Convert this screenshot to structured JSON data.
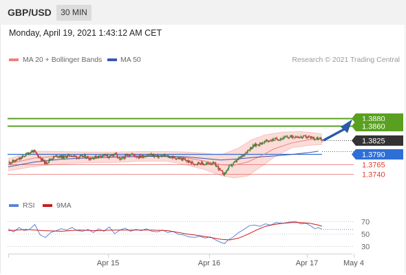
{
  "header": {
    "symbol": "GBP/USD",
    "timeframe": "30 MIN",
    "datetime": "Monday, April 19, 2021 1:43:12 AM CET"
  },
  "legend": {
    "ma20": "MA 20 + Bollinger Bands",
    "ma50": "MA 50",
    "credit": "Research © 2021 Trading Central",
    "rsi": "RSI",
    "rsi_ma": "9MA"
  },
  "colors": {
    "resistance": "#5aa020",
    "support": "#e87070",
    "pivot": "#2e6fd6",
    "current": "#333333",
    "bands": "#f9d0cc",
    "ma20": "#f08080",
    "ma50": "#3a58b0",
    "up_candle": "#3c8a3c",
    "down_candle": "#c83a3a",
    "rsi": "#5a84d6",
    "rsi_ma": "#d01818",
    "arrow": "#2a5aa8"
  },
  "chart_data": [
    {
      "type": "candlestick",
      "title": "GBP/USD",
      "timeframe": "30 MIN",
      "x_labels": [
        "Apr 15",
        "Apr 16",
        "Apr 17",
        "May 4"
      ],
      "ylim": [
        1.3705,
        1.3895
      ],
      "current_price": 1.3825,
      "levels": [
        {
          "label": "1.3880",
          "value": 1.388,
          "kind": "resistance"
        },
        {
          "label": "1.3860",
          "value": 1.386,
          "kind": "resistance"
        },
        {
          "label": "1.3825",
          "value": 1.3825,
          "kind": "current"
        },
        {
          "label": "1.3790",
          "value": 1.379,
          "kind": "pivot"
        },
        {
          "label": "1.3765",
          "value": 1.3765,
          "kind": "support"
        },
        {
          "label": "1.3740",
          "value": 1.374,
          "kind": "support"
        }
      ],
      "close_path": [
        [
          0,
          1.3768
        ],
        [
          8,
          1.3773
        ],
        [
          14,
          1.3779
        ],
        [
          22,
          1.3792
        ],
        [
          28,
          1.3798
        ],
        [
          35,
          1.3782
        ],
        [
          42,
          1.3767
        ],
        [
          48,
          1.3778
        ],
        [
          55,
          1.3786
        ],
        [
          62,
          1.3782
        ],
        [
          70,
          1.3787
        ],
        [
          78,
          1.3782
        ],
        [
          86,
          1.3784
        ],
        [
          92,
          1.3779
        ],
        [
          100,
          1.3783
        ],
        [
          108,
          1.3788
        ],
        [
          114,
          1.3782
        ],
        [
          120,
          1.3792
        ],
        [
          126,
          1.3774
        ],
        [
          132,
          1.3784
        ],
        [
          138,
          1.3791
        ],
        [
          146,
          1.3783
        ],
        [
          152,
          1.3785
        ],
        [
          160,
          1.3788
        ],
        [
          168,
          1.3784
        ],
        [
          176,
          1.3785
        ],
        [
          184,
          1.3782
        ],
        [
          192,
          1.3779
        ],
        [
          198,
          1.3776
        ],
        [
          204,
          1.377
        ],
        [
          210,
          1.3766
        ],
        [
          216,
          1.3768
        ],
        [
          222,
          1.3764
        ],
        [
          228,
          1.3768
        ],
        [
          232,
          1.3765
        ],
        [
          236,
          1.3758
        ],
        [
          240,
          1.3745
        ],
        [
          244,
          1.374
        ],
        [
          248,
          1.3755
        ],
        [
          254,
          1.3766
        ],
        [
          260,
          1.3778
        ],
        [
          266,
          1.379
        ],
        [
          272,
          1.3803
        ],
        [
          278,
          1.3812
        ],
        [
          284,
          1.3816
        ],
        [
          290,
          1.3821
        ],
        [
          296,
          1.3825
        ],
        [
          302,
          1.3827
        ],
        [
          310,
          1.383
        ],
        [
          318,
          1.3833
        ],
        [
          324,
          1.3835
        ],
        [
          330,
          1.3832
        ],
        [
          336,
          1.3833
        ],
        [
          342,
          1.3832
        ],
        [
          346,
          1.3829
        ],
        [
          350,
          1.3828
        ],
        [
          354,
          1.3826
        ]
      ],
      "ma20": [
        [
          0,
          1.3765
        ],
        [
          30,
          1.378
        ],
        [
          60,
          1.3785
        ],
        [
          90,
          1.3784
        ],
        [
          120,
          1.3785
        ],
        [
          150,
          1.3786
        ],
        [
          180,
          1.3785
        ],
        [
          200,
          1.378
        ],
        [
          220,
          1.3773
        ],
        [
          240,
          1.3763
        ],
        [
          255,
          1.3762
        ],
        [
          270,
          1.377
        ],
        [
          285,
          1.3785
        ],
        [
          300,
          1.3803
        ],
        [
          320,
          1.3818
        ],
        [
          340,
          1.3826
        ],
        [
          354,
          1.3828
        ]
      ],
      "ma50": [
        [
          0,
          1.3758
        ],
        [
          30,
          1.377
        ],
        [
          60,
          1.3777
        ],
        [
          90,
          1.378
        ],
        [
          120,
          1.3782
        ],
        [
          150,
          1.3784
        ],
        [
          180,
          1.3784
        ],
        [
          200,
          1.3783
        ],
        [
          220,
          1.3779
        ],
        [
          240,
          1.3775
        ],
        [
          260,
          1.3778
        ],
        [
          280,
          1.3782
        ],
        [
          300,
          1.3785
        ],
        [
          320,
          1.3789
        ],
        [
          340,
          1.3794
        ],
        [
          350,
          1.3797
        ]
      ],
      "bollinger_upper": [
        [
          0,
          1.3778
        ],
        [
          30,
          1.3797
        ],
        [
          60,
          1.3796
        ],
        [
          90,
          1.3795
        ],
        [
          120,
          1.3795
        ],
        [
          150,
          1.3796
        ],
        [
          180,
          1.3796
        ],
        [
          200,
          1.3795
        ],
        [
          220,
          1.3792
        ],
        [
          240,
          1.3788
        ],
        [
          260,
          1.3805
        ],
        [
          275,
          1.3826
        ],
        [
          290,
          1.3838
        ],
        [
          310,
          1.3845
        ],
        [
          330,
          1.3846
        ],
        [
          345,
          1.3843
        ],
        [
          354,
          1.384
        ]
      ],
      "bollinger_lower": [
        [
          0,
          1.3748
        ],
        [
          30,
          1.3759
        ],
        [
          60,
          1.3765
        ],
        [
          90,
          1.3768
        ],
        [
          120,
          1.3769
        ],
        [
          150,
          1.3772
        ],
        [
          180,
          1.3772
        ],
        [
          200,
          1.3763
        ],
        [
          220,
          1.3752
        ],
        [
          240,
          1.3736
        ],
        [
          255,
          1.373
        ],
        [
          270,
          1.3735
        ],
        [
          285,
          1.3758
        ],
        [
          300,
          1.3782
        ],
        [
          320,
          1.3806
        ],
        [
          340,
          1.3812
        ],
        [
          354,
          1.3814
        ]
      ],
      "forecast_arrow": {
        "from": 1.3825,
        "to": 1.3877
      }
    },
    {
      "type": "line",
      "title": "RSI",
      "ylim": [
        20,
        80
      ],
      "y_ticks": [
        70,
        50,
        30
      ],
      "series": [
        {
          "name": "RSI",
          "values": [
            [
              0,
              58
            ],
            [
              6,
              53
            ],
            [
              12,
              60
            ],
            [
              18,
              55
            ],
            [
              24,
              57
            ],
            [
              30,
              65
            ],
            [
              36,
              48
            ],
            [
              42,
              44
            ],
            [
              48,
              52
            ],
            [
              54,
              55
            ],
            [
              60,
              58
            ],
            [
              66,
              56
            ],
            [
              72,
              60
            ],
            [
              78,
              55
            ],
            [
              84,
              54
            ],
            [
              90,
              57
            ],
            [
              96,
              52
            ],
            [
              102,
              58
            ],
            [
              108,
              54
            ],
            [
              114,
              61
            ],
            [
              120,
              50
            ],
            [
              126,
              56
            ],
            [
              132,
              59
            ],
            [
              138,
              54
            ],
            [
              144,
              57
            ],
            [
              150,
              55
            ],
            [
              156,
              58
            ],
            [
              162,
              54
            ],
            [
              168,
              53
            ],
            [
              174,
              56
            ],
            [
              180,
              52
            ],
            [
              186,
              54
            ],
            [
              192,
              49
            ],
            [
              198,
              48
            ],
            [
              204,
              45
            ],
            [
              210,
              44
            ],
            [
              216,
              46
            ],
            [
              222,
              43
            ],
            [
              228,
              45
            ],
            [
              234,
              40
            ],
            [
              240,
              36
            ],
            [
              244,
              34
            ],
            [
              248,
              40
            ],
            [
              254,
              45
            ],
            [
              260,
              52
            ],
            [
              266,
              57
            ],
            [
              272,
              63
            ],
            [
              278,
              64
            ],
            [
              284,
              62
            ],
            [
              290,
              66
            ],
            [
              296,
              64
            ],
            [
              302,
              68
            ],
            [
              310,
              67
            ],
            [
              318,
              69
            ],
            [
              324,
              70
            ],
            [
              330,
              66
            ],
            [
              336,
              67
            ],
            [
              342,
              62
            ],
            [
              346,
              58
            ],
            [
              350,
              60
            ],
            [
              354,
              57
            ]
          ]
        },
        {
          "name": "9MA",
          "values": [
            [
              0,
              55
            ],
            [
              20,
              57
            ],
            [
              40,
              55
            ],
            [
              60,
              54
            ],
            [
              80,
              56
            ],
            [
              100,
              55
            ],
            [
              120,
              56
            ],
            [
              140,
              56
            ],
            [
              160,
              56
            ],
            [
              180,
              55
            ],
            [
              200,
              50
            ],
            [
              220,
              46
            ],
            [
              240,
              41
            ],
            [
              250,
              40
            ],
            [
              260,
              43
            ],
            [
              270,
              49
            ],
            [
              280,
              56
            ],
            [
              290,
              62
            ],
            [
              300,
              65
            ],
            [
              310,
              67
            ],
            [
              320,
              68
            ],
            [
              330,
              68
            ],
            [
              340,
              67
            ],
            [
              350,
              64
            ],
            [
              354,
              62
            ]
          ]
        }
      ]
    }
  ]
}
